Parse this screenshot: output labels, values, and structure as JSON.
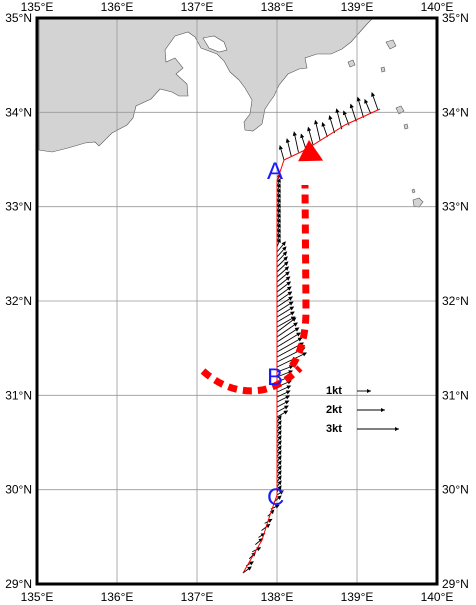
{
  "x_labels": [
    "135°E",
    "136°E",
    "137°E",
    "138°E",
    "139°E",
    "140°E"
  ],
  "y_labels": [
    "29°N",
    "30°N",
    "31°N",
    "32°N",
    "33°N",
    "34°N",
    "35°N"
  ],
  "points": [
    {
      "label": "A",
      "lon": 138.0,
      "lat": 33.45
    },
    {
      "label": "B",
      "lon": 138.0,
      "lat": 31.2
    },
    {
      "label": "C",
      "lon": 138.0,
      "lat": 29.95
    }
  ],
  "legend": [
    {
      "label": "1kt",
      "speed": 1
    },
    {
      "label": "2kt",
      "speed": 2
    },
    {
      "label": "3kt",
      "speed": 3
    }
  ],
  "colors": {
    "land": "#d3d3d3",
    "track": "#ff0000",
    "arrow": "#ff0000",
    "vector": "#000000",
    "point_label": "#1a1aff",
    "grid": "#999999"
  }
}
